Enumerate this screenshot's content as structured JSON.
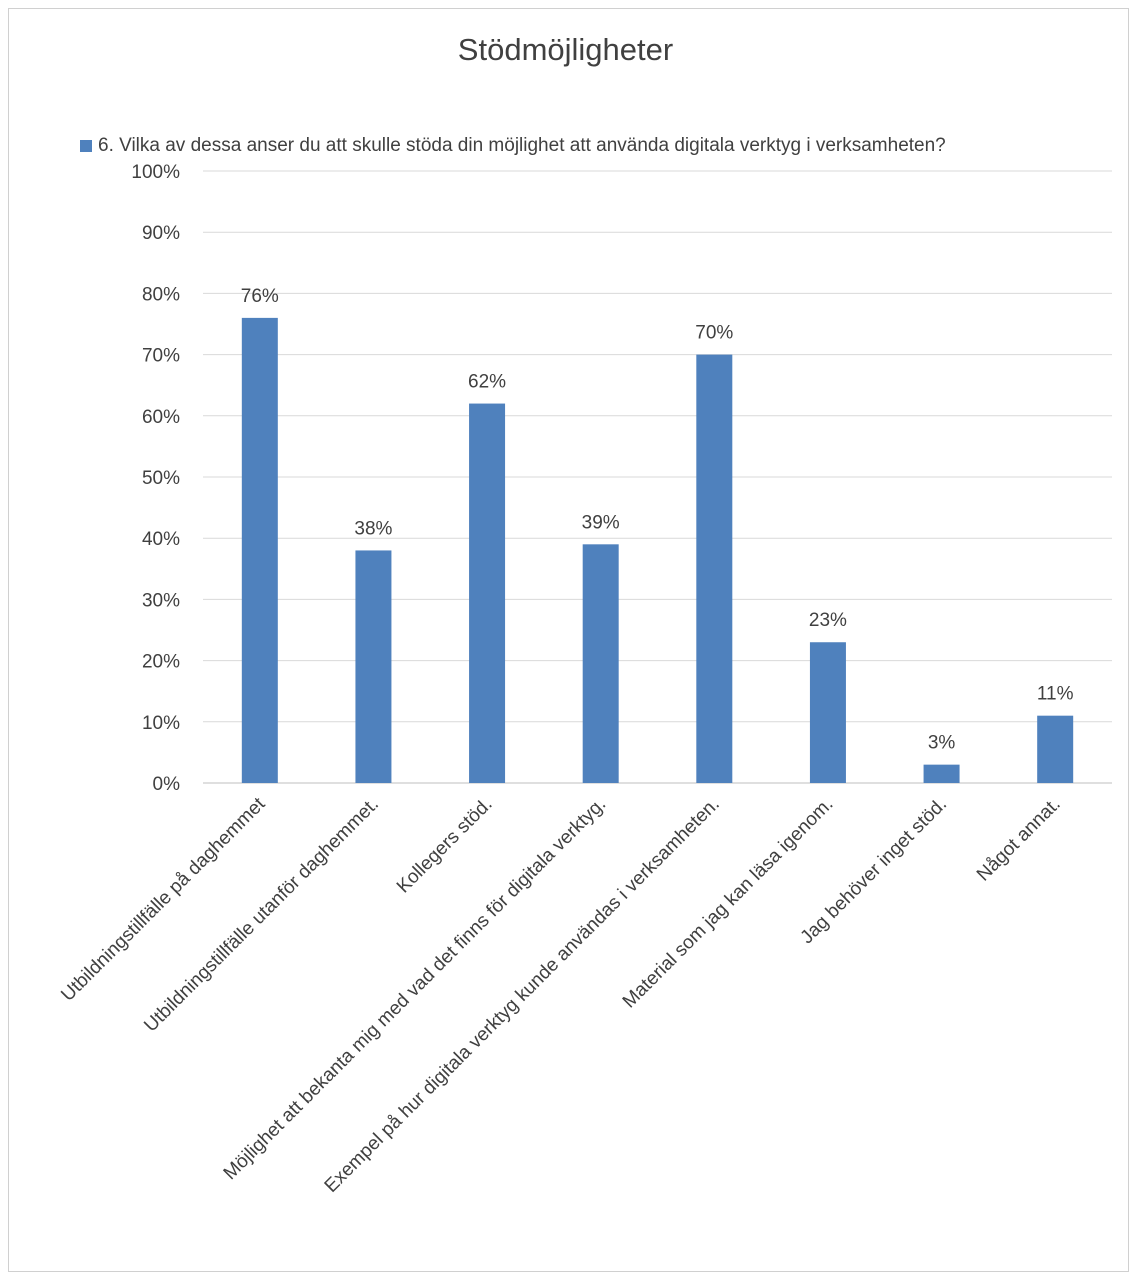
{
  "chart_data": {
    "type": "bar",
    "title": "Stödmöjligheter",
    "xlabel": "",
    "ylabel": "",
    "ylim": [
      0,
      1
    ],
    "yticks": [
      "0%",
      "10%",
      "20%",
      "30%",
      "40%",
      "50%",
      "60%",
      "70%",
      "80%",
      "90%",
      "100%"
    ],
    "grid": true,
    "legend_position": "top",
    "categories": [
      "Utbildningstillfälle på daghemmet",
      "Utbildningstillfälle utanför daghemmet.",
      "Kollegers stöd.",
      "Möjlighet att bekanta mig med vad det finns för digitala verktyg.",
      "Exempel på hur digitala verktyg kunde användas i verksamheten.",
      "Material som jag kan läsa igenom.",
      "Jag behöver inget stöd.",
      "Något annat."
    ],
    "series": [
      {
        "name": "6. Vilka av dessa anser du att skulle stöda din möjlighet att använda digitala verktyg i verksamheten?",
        "values": [
          0.76,
          0.38,
          0.62,
          0.39,
          0.7,
          0.23,
          0.03,
          0.11
        ],
        "labels": [
          "76%",
          "38%",
          "62%",
          "39%",
          "70%",
          "23%",
          "3%",
          "11%"
        ],
        "color": "#4f81bd"
      }
    ],
    "colors": {
      "bar": "#4f81bd",
      "grid": "#d9d9d9",
      "axis": "#bfbfbf",
      "text": "#404040"
    }
  }
}
